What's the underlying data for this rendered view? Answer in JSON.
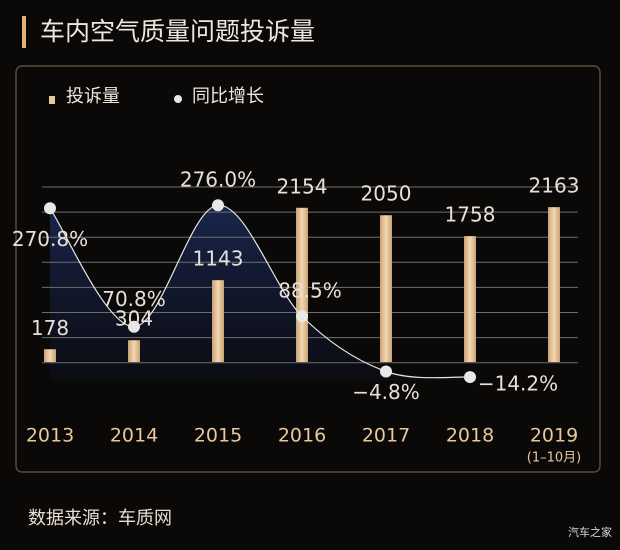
{
  "chart_data": {
    "type": "bar-line",
    "title": "车内空气质量问题投诉量",
    "categories": [
      "2013",
      "2014",
      "2015",
      "2016",
      "2017",
      "2018",
      "2019"
    ],
    "x_note": "(1–10月)",
    "series": [
      {
        "name": "投诉量",
        "type": "bar",
        "color": "#e8c79c",
        "values": [
          178,
          304,
          1143,
          2154,
          2050,
          1758,
          2163
        ]
      },
      {
        "name": "同比增长",
        "type": "line",
        "axis": "y2",
        "color": "#e6e6e6",
        "values": [
          270.8,
          70.8,
          276.0,
          88.5,
          -4.8,
          -14.2,
          null
        ],
        "value_labels": [
          "270.8%",
          "70.8%",
          "276.0%",
          "88.5%",
          "−4.8%",
          "−14.2%",
          null
        ]
      }
    ],
    "ylim": [
      0,
      2500
    ],
    "y2lim": [
      -20,
      300
    ],
    "grid": true,
    "source": "数据来源：车质网",
    "watermark": "汽车之家"
  }
}
